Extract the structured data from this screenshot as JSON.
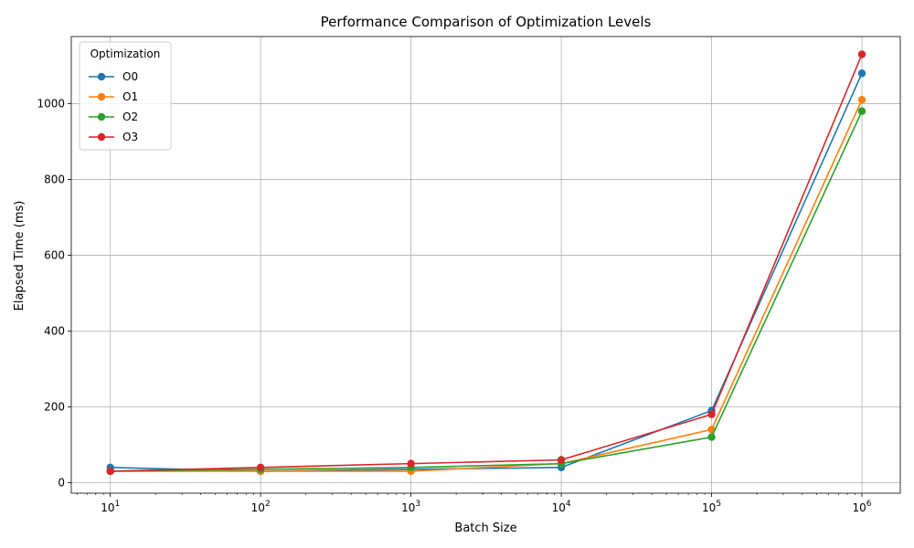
{
  "chart_data": {
    "type": "line",
    "title": "Performance Comparison of Optimization Levels",
    "xlabel": "Batch Size",
    "ylabel": "Elapsed Time (ms)",
    "xscale": "log",
    "xlim": [
      5.5,
      1800000
    ],
    "ylim": [
      -28,
      1177
    ],
    "x": [
      10,
      100,
      1000,
      10000,
      100000,
      1000000
    ],
    "x_tick_values": [
      10,
      100,
      1000,
      10000,
      100000,
      1000000
    ],
    "x_tick_exponents": [
      "1",
      "2",
      "3",
      "4",
      "5",
      "6"
    ],
    "x_tick_base": "10",
    "y_ticks": [
      0,
      200,
      400,
      600,
      800,
      1000
    ],
    "y_tick_labels": [
      "0",
      "200",
      "400",
      "600",
      "800",
      "1000"
    ],
    "grid": true,
    "legend": {
      "title": "Optimization",
      "placement": "top-left"
    },
    "series": [
      {
        "name": "O0",
        "color": "#1f77b4",
        "values": [
          40,
          30,
          35,
          40,
          190,
          1080
        ]
      },
      {
        "name": "O1",
        "color": "#ff7f0e",
        "values": [
          30,
          30,
          30,
          50,
          140,
          1010
        ]
      },
      {
        "name": "O2",
        "color": "#2ca02c",
        "values": [
          30,
          35,
          40,
          50,
          120,
          980
        ]
      },
      {
        "name": "O3",
        "color": "#d62728",
        "values": [
          30,
          40,
          50,
          60,
          180,
          1130
        ]
      }
    ]
  }
}
